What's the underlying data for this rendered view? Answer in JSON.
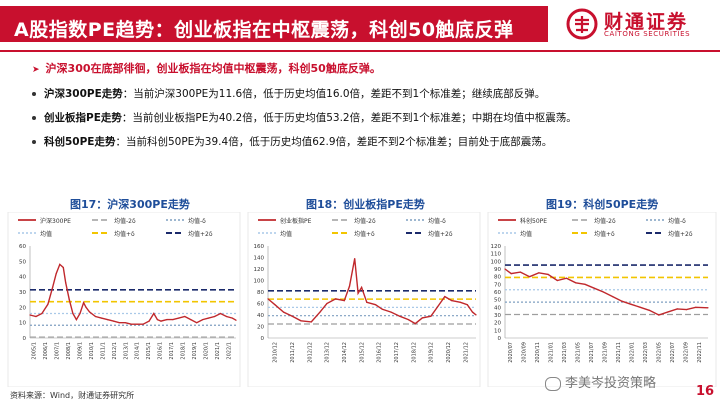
{
  "header": {
    "title": "A股指数PE趋势：创业板指在中枢震荡，科创50触底反弹",
    "logo_cn": "财通证券",
    "logo_en": "CAITONG SECURITIES"
  },
  "bullets": {
    "headline": "沪深300在底部徘徊，创业板指在均值中枢震荡，科创50触底反弹。",
    "items": [
      {
        "label": "沪深300PE走势",
        "text": "：当前沪深300PE为11.6倍，低于历史均值16.0倍，差距不到1个标准差；继续底部反弹。"
      },
      {
        "label": "创业板指PE走势",
        "text": "：当前创业板指PE为40.2倍，低于历史均值53.2倍，差距不到1个标准差；中期在均值中枢震荡。"
      },
      {
        "label": "科创50PE走势",
        "text": "：当前科创50PE为39.4倍，低于历史均值62.9倍，差距不到2个标准差；目前处于底部震荡。"
      }
    ]
  },
  "footer": {
    "source": "资料来源：Wind，财通证券研究所",
    "page": "16",
    "watermark": "李美岑投资策略"
  },
  "colors": {
    "brand_red": "#c8102e",
    "line_red": "#c0282c",
    "plus2sd": "#1b2a6b",
    "plus1sd": "#f2c500",
    "mean": "#a9c9e8",
    "minus1sd": "#7f9fc0",
    "minus2sd": "#9e9e9e"
  },
  "chart_data": [
    {
      "type": "line",
      "title": "图17：沪深300PE走势",
      "legend": [
        "沪深300PE",
        "均值-2δ",
        "均值-δ",
        "均值",
        "均值+δ",
        "均值+2δ"
      ],
      "ylim": [
        0,
        60
      ],
      "yticks": [
        0,
        10,
        20,
        30,
        40,
        50,
        60
      ],
      "xticks": [
        "2005/1",
        "2006/1",
        "2007/1",
        "2008/1",
        "2009/1",
        "2010/1",
        "2011/1",
        "2012/1",
        "2013/1",
        "2014/1",
        "2015/1",
        "2016/1",
        "2017/1",
        "2018/1",
        "2019/1",
        "2020/1",
        "2021/1",
        "2022/1"
      ],
      "x": [
        2005.0,
        2005.5,
        2006.0,
        2006.5,
        2006.9,
        2007.2,
        2007.5,
        2007.8,
        2008.0,
        2008.3,
        2008.6,
        2008.9,
        2009.2,
        2009.5,
        2009.7,
        2010.0,
        2010.5,
        2011.0,
        2011.5,
        2012.0,
        2012.5,
        2013.0,
        2013.5,
        2014.0,
        2014.5,
        2015.0,
        2015.4,
        2015.7,
        2016.0,
        2016.5,
        2017.0,
        2017.5,
        2018.0,
        2018.5,
        2019.0,
        2019.5,
        2020.0,
        2020.5,
        2021.0,
        2021.5,
        2022.0,
        2022.3
      ],
      "values": [
        15,
        14,
        16,
        22,
        33,
        42,
        48,
        46,
        36,
        25,
        16,
        12,
        16,
        23,
        20,
        17,
        14,
        13,
        12,
        11,
        10,
        10,
        9,
        9,
        9,
        11,
        16,
        12,
        11,
        12,
        12,
        13,
        14,
        12,
        10,
        12,
        13,
        14,
        16,
        14,
        13,
        11.6
      ],
      "lines": {
        "mean": 16.0,
        "plus1sd": 23.7,
        "plus2sd": 31.4,
        "minus1sd": 8.3,
        "minus2sd": 0.6
      }
    },
    {
      "type": "line",
      "title": "图18：创业板指PE走势",
      "legend": [
        "创业板指PE",
        "均值-2δ",
        "均值-δ",
        "均值",
        "均值+δ",
        "均值+2δ"
      ],
      "ylim": [
        0,
        160
      ],
      "yticks": [
        0,
        20,
        40,
        60,
        80,
        100,
        120,
        140,
        160
      ],
      "xticks": [
        "2010/12",
        "2011/12",
        "2012/12",
        "2013/12",
        "2014/12",
        "2015/12",
        "2016/12",
        "2017/12",
        "2018/12",
        "2019/12",
        "2020/12",
        "2021/12"
      ],
      "x": [
        2010.4,
        2010.8,
        2011.3,
        2011.8,
        2012.3,
        2012.9,
        2013.4,
        2013.8,
        2014.3,
        2014.8,
        2015.1,
        2015.4,
        2015.6,
        2015.8,
        2016.1,
        2016.6,
        2017.0,
        2017.5,
        2018.0,
        2018.5,
        2018.9,
        2019.3,
        2019.8,
        2020.2,
        2020.6,
        2021.0,
        2021.5,
        2021.9,
        2022.2,
        2022.4
      ],
      "values": [
        68,
        58,
        45,
        38,
        30,
        28,
        45,
        60,
        68,
        65,
        90,
        138,
        78,
        88,
        62,
        58,
        50,
        45,
        38,
        32,
        25,
        35,
        38,
        55,
        72,
        65,
        62,
        58,
        45,
        40.2
      ],
      "lines": {
        "mean": 53.2,
        "plus1sd": 67.6,
        "plus2sd": 82.0,
        "minus1sd": 38.8,
        "minus2sd": 24.4
      }
    },
    {
      "type": "line",
      "title": "图19：科创50PE走势",
      "legend": [
        "科创50PE",
        "均值-2δ",
        "均值-δ",
        "均值",
        "均值+δ",
        "均值+2δ"
      ],
      "ylim": [
        0,
        120
      ],
      "yticks": [
        0,
        10,
        20,
        30,
        40,
        50,
        60,
        70,
        80,
        90,
        100,
        110,
        120
      ],
      "xticks": [
        "2020/07",
        "2020/09",
        "2020/11",
        "2021/01",
        "2021/03",
        "2021/05",
        "2021/07",
        "2021/09",
        "2021/11",
        "2022/01",
        "2022/03",
        "2022/05",
        "2022/07",
        "2022/09",
        "2022/11"
      ],
      "x": [
        2020.5,
        2020.6,
        2020.75,
        2020.9,
        2021.05,
        2021.2,
        2021.35,
        2021.5,
        2021.65,
        2021.8,
        2021.95,
        2022.1,
        2022.25,
        2022.4,
        2022.55,
        2022.7,
        2022.85,
        2023.0,
        2023.15,
        2023.3,
        2023.45,
        2023.6,
        2023.8
      ],
      "values": [
        90,
        84,
        86,
        80,
        85,
        83,
        75,
        78,
        72,
        70,
        65,
        60,
        54,
        48,
        44,
        40,
        36,
        30,
        34,
        38,
        37,
        40,
        39.4
      ],
      "lines": {
        "mean": 62.9,
        "plus1sd": 79.0,
        "plus2sd": 95.1,
        "minus1sd": 46.8,
        "minus2sd": 30.7
      }
    }
  ]
}
